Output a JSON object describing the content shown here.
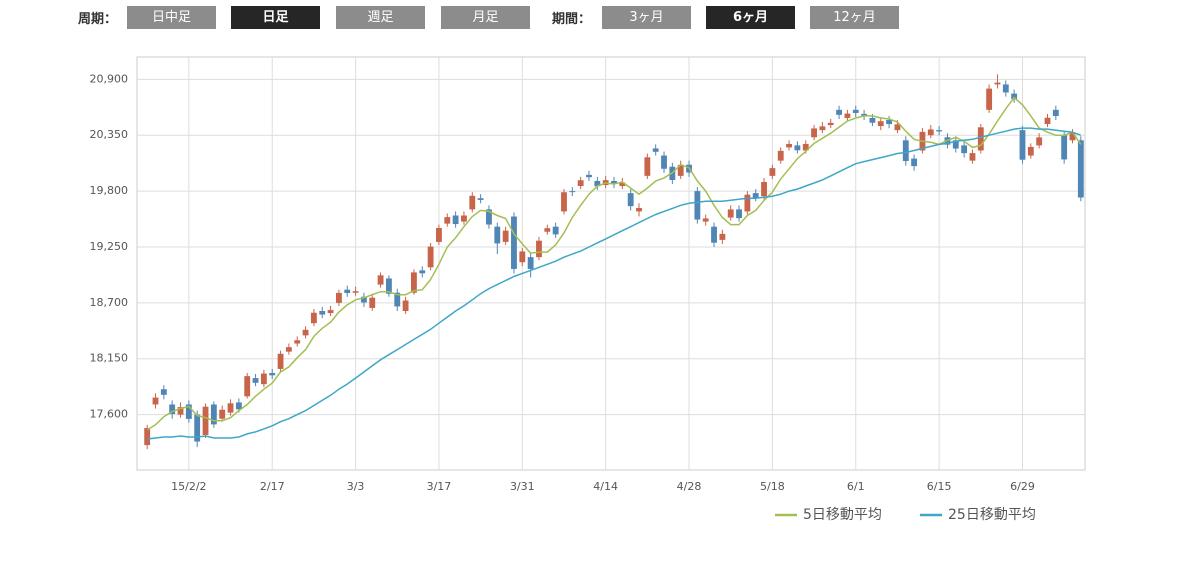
{
  "toolbar": {
    "period_label": "周期：",
    "periods": [
      "日中足",
      "日足",
      "週足",
      "月足"
    ],
    "range_label": "期間：",
    "ranges": [
      "3ヶ月",
      "6ヶ月",
      "12ヶ月"
    ]
  },
  "chart_data": {
    "type": "candlestick",
    "categories": [
      null,
      null,
      null,
      null,
      null,
      "15/2/2",
      null,
      null,
      null,
      null,
      null,
      null,
      null,
      null,
      null,
      "2/17",
      null,
      null,
      null,
      null,
      null,
      null,
      null,
      null,
      null,
      "3/3",
      null,
      null,
      null,
      null,
      null,
      null,
      null,
      null,
      null,
      "3/17",
      null,
      null,
      null,
      null,
      null,
      null,
      null,
      null,
      null,
      "3/31",
      null,
      null,
      null,
      null,
      null,
      null,
      null,
      null,
      null,
      "4/14",
      null,
      null,
      null,
      null,
      null,
      null,
      null,
      null,
      null,
      "4/28",
      null,
      null,
      null,
      null,
      null,
      null,
      null,
      null,
      null,
      "5/18",
      null,
      null,
      null,
      null,
      null,
      null,
      null,
      null,
      null,
      "6/1",
      null,
      null,
      null,
      null,
      null,
      null,
      null,
      null,
      null,
      "6/15",
      null,
      null,
      null,
      null,
      null,
      null,
      null,
      null,
      null,
      "6/29",
      null,
      null,
      null,
      null,
      null,
      null,
      null
    ],
    "open": [
      17300,
      17700,
      17850,
      17700,
      17600,
      17700,
      17600,
      17400,
      17700,
      17560,
      17620,
      17720,
      17780,
      17960,
      17900,
      18010,
      18050,
      18220,
      18300,
      18380,
      18500,
      18620,
      18600,
      18700,
      18830,
      18800,
      18760,
      18650,
      18880,
      18940,
      18800,
      18620,
      18800,
      19020,
      19050,
      19300,
      19480,
      19560,
      19500,
      19620,
      19730,
      19620,
      19450,
      19300,
      19550,
      19100,
      19150,
      19150,
      19400,
      19450,
      19600,
      19800,
      19850,
      19960,
      19900,
      19860,
      19900,
      19850,
      19780,
      19600,
      19950,
      20220,
      20150,
      20040,
      19950,
      20060,
      19800,
      19500,
      19450,
      19320,
      19540,
      19620,
      19600,
      19780,
      19750,
      19950,
      20100,
      20230,
      20250,
      20200,
      20330,
      20400,
      20450,
      20600,
      20520,
      20600,
      20560,
      20520,
      20440,
      20500,
      20400,
      20300,
      20120,
      20200,
      20350,
      20400,
      20330,
      20300,
      20250,
      20100,
      20200,
      20600,
      20850,
      20850,
      20760,
      20400,
      20150,
      20250,
      20460,
      20600,
      20350,
      20300,
      20300
    ],
    "high": [
      17500,
      17810,
      17890,
      17740,
      17720,
      17740,
      17640,
      17710,
      17730,
      17690,
      17750,
      17760,
      18010,
      18000,
      18040,
      18050,
      18230,
      18300,
      18370,
      18470,
      18640,
      18660,
      18670,
      18830,
      18870,
      18860,
      18800,
      18790,
      19000,
      18970,
      18840,
      18760,
      19030,
      19060,
      19290,
      19470,
      19580,
      19600,
      19600,
      19790,
      19770,
      19660,
      19490,
      19450,
      19590,
      19240,
      19190,
      19350,
      19470,
      19490,
      19820,
      19840,
      19940,
      20000,
      19940,
      19950,
      19940,
      19930,
      19820,
      19680,
      20170,
      20260,
      20190,
      20080,
      20100,
      20100,
      19840,
      19570,
      19490,
      19420,
      19660,
      19660,
      19800,
      19820,
      19930,
      20060,
      20230,
      20300,
      20290,
      20300,
      20450,
      20480,
      20510,
      20640,
      20600,
      20640,
      20600,
      20560,
      20530,
      20540,
      20500,
      20340,
      20160,
      20420,
      20450,
      20440,
      20370,
      20340,
      20290,
      20210,
      20460,
      20850,
      20950,
      20890,
      20800,
      20440,
      20270,
      20370,
      20560,
      20640,
      20390,
      20410,
      20340
    ],
    "low": [
      17260,
      17660,
      17750,
      17560,
      17570,
      17520,
      17280,
      17370,
      17470,
      17530,
      17590,
      17620,
      17760,
      17880,
      17870,
      17950,
      18020,
      18190,
      18270,
      18350,
      18470,
      18550,
      18570,
      18670,
      18760,
      18770,
      18660,
      18620,
      18850,
      18760,
      18620,
      18590,
      18780,
      18950,
      19020,
      19270,
      19450,
      19440,
      19470,
      19590,
      19680,
      19430,
      19180,
      19270,
      18990,
      19060,
      18950,
      19120,
      19370,
      19340,
      19570,
      19750,
      19820,
      19900,
      19810,
      19830,
      19830,
      19820,
      19610,
      19550,
      19920,
      20150,
      19980,
      19870,
      19920,
      19940,
      19480,
      19460,
      19250,
      19280,
      19510,
      19500,
      19570,
      19700,
      19720,
      19920,
      20070,
      20200,
      20170,
      20170,
      20300,
      20370,
      20420,
      20510,
      20490,
      20530,
      20500,
      20440,
      20400,
      20420,
      20370,
      20050,
      20000,
      20170,
      20320,
      20350,
      20220,
      20180,
      20130,
      20070,
      20170,
      20570,
      20810,
      20730,
      20670,
      20070,
      20120,
      20220,
      20430,
      20500,
      20070,
      20270,
      19700
    ],
    "close": [
      17468,
      17768,
      17795,
      17606,
      17674,
      17558,
      17335,
      17678,
      17504,
      17648,
      17711,
      17652,
      17979,
      17913,
      18004,
      17987,
      18199,
      18264,
      18332,
      18435,
      18603,
      18585,
      18629,
      18798,
      18797,
      18815,
      18704,
      18751,
      18971,
      18790,
      18665,
      18723,
      19000,
      18991,
      19254,
      19437,
      19544,
      19476,
      19560,
      19754,
      19713,
      19471,
      19285,
      19411,
      19034,
      19206,
      19034,
      19312,
      19435,
      19374,
      19789,
      19790,
      19907,
      19937,
      19848,
      19908,
      19870,
      19885,
      19652,
      19634,
      20133,
      20187,
      20020,
      19909,
      20058,
      19983,
      19520,
      19531,
      19292,
      19379,
      19620,
      19534,
      19765,
      19733,
      19890,
      20026,
      20196,
      20264,
      20202,
      20264,
      20417,
      20437,
      20472,
      20551,
      20563,
      20569,
      20543,
      20473,
      20488,
      20460,
      20457,
      20096,
      20046,
      20383,
      20407,
      20387,
      20257,
      20219,
      20174,
      20174,
      20428,
      20809,
      20868,
      20771,
      20706,
      20109,
      20235,
      20329,
      20522,
      20539,
      20112,
      20376,
      19737
    ],
    "up_color": "#c8644a",
    "down_color": "#4f86b5",
    "series": [
      {
        "name": "5日移動平均",
        "color": "#a3bf52",
        "values": [
          17450,
          17500,
          17580,
          17630,
          17660,
          17680,
          17590,
          17570,
          17540,
          17540,
          17570,
          17640,
          17700,
          17780,
          17850,
          17910,
          18020,
          18070,
          18160,
          18240,
          18370,
          18450,
          18510,
          18610,
          18680,
          18730,
          18750,
          18780,
          18810,
          18810,
          18780,
          18780,
          18820,
          18830,
          18930,
          19080,
          19250,
          19340,
          19450,
          19550,
          19610,
          19600,
          19560,
          19530,
          19380,
          19280,
          19190,
          19200,
          19200,
          19270,
          19390,
          19540,
          19660,
          19770,
          19850,
          19880,
          19870,
          19890,
          19830,
          19770,
          19830,
          19900,
          19930,
          19980,
          20060,
          20030,
          19900,
          19800,
          19660,
          19540,
          19470,
          19470,
          19560,
          19610,
          19710,
          19790,
          19920,
          20020,
          20120,
          20190,
          20270,
          20320,
          20370,
          20430,
          20490,
          20520,
          20540,
          20540,
          20520,
          20510,
          20480,
          20390,
          20310,
          20290,
          20280,
          20260,
          20300,
          20330,
          20290,
          20230,
          20250,
          20360,
          20490,
          20610,
          20720,
          20650,
          20540,
          20420,
          20380,
          20350,
          20350,
          20380,
          20260
        ]
      },
      {
        "name": "25日移動平均",
        "color": "#3ea6c8",
        "values": [
          17360,
          17370,
          17380,
          17380,
          17390,
          17380,
          17380,
          17390,
          17370,
          17370,
          17370,
          17380,
          17410,
          17430,
          17460,
          17490,
          17530,
          17560,
          17600,
          17640,
          17690,
          17740,
          17790,
          17850,
          17900,
          17960,
          18020,
          18080,
          18140,
          18190,
          18240,
          18290,
          18340,
          18390,
          18440,
          18500,
          18560,
          18620,
          18670,
          18730,
          18790,
          18840,
          18880,
          18920,
          18960,
          18990,
          19020,
          19050,
          19080,
          19110,
          19150,
          19180,
          19210,
          19250,
          19290,
          19330,
          19370,
          19410,
          19450,
          19490,
          19530,
          19570,
          19600,
          19630,
          19660,
          19680,
          19690,
          19700,
          19700,
          19700,
          19710,
          19720,
          19730,
          19730,
          19740,
          19750,
          19770,
          19800,
          19820,
          19850,
          19880,
          19910,
          19950,
          19990,
          20030,
          20070,
          20090,
          20110,
          20130,
          20150,
          20170,
          20180,
          20200,
          20220,
          20240,
          20260,
          20270,
          20290,
          20300,
          20310,
          20330,
          20350,
          20370,
          20390,
          20410,
          20420,
          20420,
          20410,
          20410,
          20400,
          20390,
          20380,
          20350
        ]
      }
    ],
    "ylim": [
      17055,
      21120
    ],
    "yticks": [
      {
        "value": 17600,
        "label": "17,600"
      },
      {
        "value": 18150,
        "label": "18,150"
      },
      {
        "value": 18700,
        "label": "18,700"
      },
      {
        "value": 19250,
        "label": "19,250"
      },
      {
        "value": 19800,
        "label": "19,800"
      },
      {
        "value": 20350,
        "label": "20,350"
      },
      {
        "value": 20900,
        "label": "20,900"
      }
    ],
    "grid": true
  }
}
